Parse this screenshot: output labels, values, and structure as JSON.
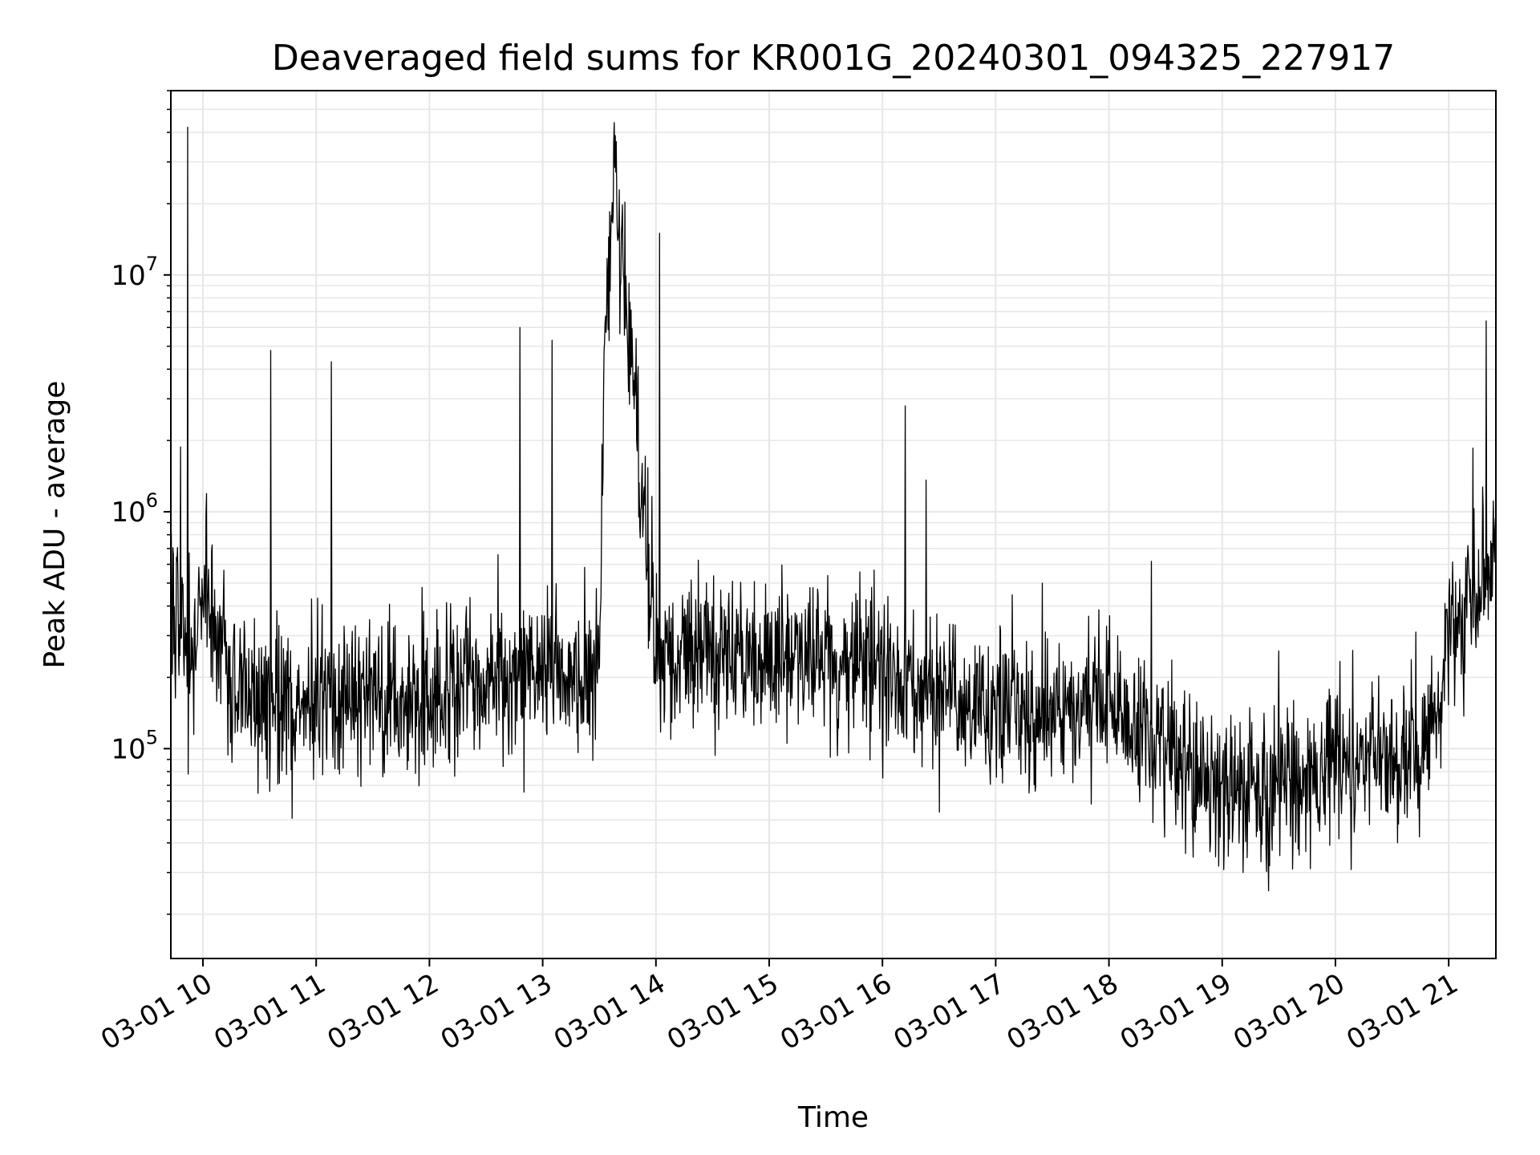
{
  "chart_data": {
    "type": "line",
    "title": "Deaveraged field sums for KR001G_20240301_094325_227917",
    "xlabel": "Time",
    "ylabel": "Peak ADU - average",
    "yscale": "log",
    "xlim": [
      "03-01 09:43",
      "03-01 21:25"
    ],
    "ylim": [
      13000,
      60000000
    ],
    "grid": true,
    "x_ticks": [
      "03-01 10",
      "03-01 11",
      "03-01 12",
      "03-01 13",
      "03-01 14",
      "03-01 15",
      "03-01 16",
      "03-01 17",
      "03-01 18",
      "03-01 19",
      "03-01 20",
      "03-01 21"
    ],
    "y_ticks": [
      {
        "base": "10",
        "exp": "5",
        "value": 100000
      },
      {
        "base": "10",
        "exp": "6",
        "value": 1000000
      },
      {
        "base": "10",
        "exp": "7",
        "value": 10000000
      }
    ],
    "line_color": "#000000",
    "grid_color": "#e6e6e6",
    "series": [
      {
        "x": [
          "03-01 09:43",
          "03-01 09:50",
          "03-01 09:52",
          "03-01 09:54",
          "03-01 10:00",
          "03-01 10:15",
          "03-01 10:30",
          "03-01 10:36",
          "03-01 10:45",
          "03-01 11:00",
          "03-01 11:08",
          "03-01 11:15",
          "03-01 11:30",
          "03-01 12:00",
          "03-01 12:30",
          "03-01 12:48",
          "03-01 13:00",
          "03-01 13:05",
          "03-01 13:30",
          "03-01 13:33",
          "03-01 13:38",
          "03-01 14:00",
          "03-01 14:02",
          "03-01 14:30",
          "03-01 15:00",
          "03-01 15:30",
          "03-01 16:00",
          "03-01 16:12",
          "03-01 16:30",
          "03-01 17:00",
          "03-01 17:30",
          "03-01 18:00",
          "03-01 18:30",
          "03-01 18:45",
          "03-01 19:00",
          "03-01 19:15",
          "03-01 19:30",
          "03-01 20:00",
          "03-01 20:30",
          "03-01 20:50",
          "03-01 21:00",
          "03-01 21:15",
          "03-01 21:20",
          "03-01 21:25"
        ],
        "y": [
          350000,
          300000,
          42000000,
          250000,
          500000,
          200000,
          150000,
          4800000,
          150000,
          140000,
          4300000,
          160000,
          150000,
          160000,
          190000,
          6000000,
          210000,
          5300000,
          240000,
          6200000,
          30000000,
          240000,
          15000000,
          250000,
          260000,
          240000,
          200000,
          2800000,
          170000,
          150000,
          140000,
          150000,
          100000,
          80000,
          75000,
          65000,
          70000,
          90000,
          90000,
          100000,
          300000,
          450000,
          6400000,
          550000
        ]
      }
    ]
  }
}
